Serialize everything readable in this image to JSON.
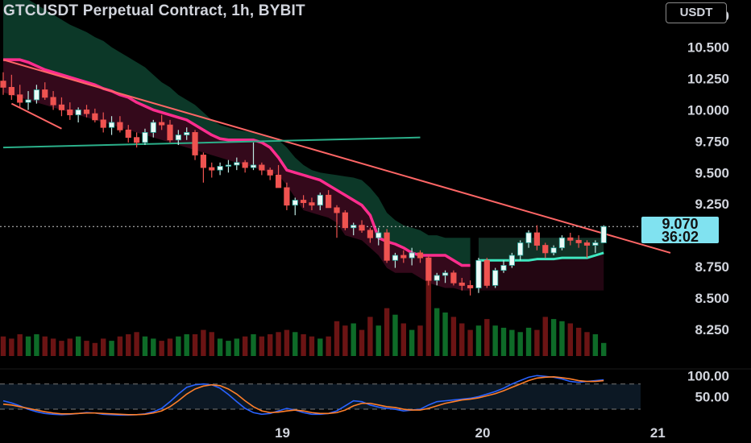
{
  "header": {
    "title": "GTCUSDT Perpetual Contract, 1h, BYBIT",
    "currency_label": "USDT"
  },
  "price_marker": {
    "price": "9.070",
    "countdown": "36:02"
  },
  "colors": {
    "up": "#26a69a",
    "down": "#ef5350",
    "cloud_upper": "#0d3b2a",
    "cloud_lower": "#3a0a1e",
    "stop_line": "#ff2d8e",
    "stop_line_up": "#3ee8c0",
    "trend_down": "#ff6666",
    "trend_green": "#2bb08a",
    "vol_up": "#0e6b28",
    "vol_down": "#6b1414",
    "k_line": "#2962ff",
    "d_line": "#ff7f2a",
    "price_box": "#80e2f0"
  },
  "chart_data": [
    {
      "type": "candlestick",
      "title": "GTCUSDT Perpetual Contract, 1h, BYBIT",
      "x_ticks": [
        {
          "label": "19",
          "bar": 33
        },
        {
          "label": "20",
          "bar": 57
        },
        {
          "label": "21",
          "bar": 78
        }
      ],
      "y_ticks": [
        "10.750",
        "10.500",
        "10.250",
        "10.000",
        "9.750",
        "9.500",
        "9.250",
        "8.750",
        "8.500",
        "8.250"
      ],
      "ylim": [
        8.05,
        10.78
      ],
      "last_price": 9.07,
      "candles_ohlc": [
        [
          10.23,
          10.3,
          10.12,
          10.18
        ],
        [
          10.18,
          10.28,
          10.08,
          10.12
        ],
        [
          10.12,
          10.2,
          10.02,
          10.06
        ],
        [
          10.06,
          10.15,
          10.0,
          10.08
        ],
        [
          10.08,
          10.2,
          10.05,
          10.16
        ],
        [
          10.16,
          10.22,
          10.08,
          10.1
        ],
        [
          10.1,
          10.15,
          10.0,
          10.04
        ],
        [
          10.04,
          10.1,
          9.95,
          10.0
        ],
        [
          10.0,
          10.06,
          9.92,
          9.96
        ],
        [
          9.96,
          10.02,
          9.9,
          10.0
        ],
        [
          10.0,
          10.04,
          9.94,
          9.97
        ],
        [
          9.97,
          10.01,
          9.9,
          9.92
        ],
        [
          9.92,
          9.98,
          9.82,
          9.86
        ],
        [
          9.86,
          9.95,
          9.8,
          9.9
        ],
        [
          9.9,
          9.95,
          9.82,
          9.84
        ],
        [
          9.84,
          9.88,
          9.74,
          9.78
        ],
        [
          9.78,
          9.82,
          9.7,
          9.74
        ],
        [
          9.74,
          9.85,
          9.72,
          9.82
        ],
        [
          9.82,
          9.92,
          9.78,
          9.9
        ],
        [
          9.9,
          9.96,
          9.84,
          9.88
        ],
        [
          9.88,
          9.92,
          9.74,
          9.76
        ],
        [
          9.76,
          9.84,
          9.72,
          9.8
        ],
        [
          9.8,
          9.86,
          9.76,
          9.82
        ],
        [
          9.82,
          9.84,
          9.6,
          9.64
        ],
        [
          9.64,
          9.66,
          9.42,
          9.54
        ],
        [
          9.54,
          9.58,
          9.46,
          9.52
        ],
        [
          9.52,
          9.58,
          9.48,
          9.55
        ],
        [
          9.55,
          9.6,
          9.5,
          9.56
        ],
        [
          9.56,
          9.62,
          9.52,
          9.58
        ],
        [
          9.58,
          9.6,
          9.5,
          9.54
        ],
        [
          9.54,
          9.74,
          9.52,
          9.56
        ],
        [
          9.56,
          9.58,
          9.48,
          9.52
        ],
        [
          9.52,
          9.54,
          9.44,
          9.48
        ],
        [
          9.48,
          9.56,
          9.4,
          9.38
        ],
        [
          9.38,
          9.42,
          9.2,
          9.24
        ],
        [
          9.24,
          9.3,
          9.16,
          9.28
        ],
        [
          9.28,
          9.32,
          9.22,
          9.26
        ],
        [
          9.26,
          9.3,
          9.2,
          9.24
        ],
        [
          9.24,
          9.34,
          9.2,
          9.32
        ],
        [
          9.32,
          9.36,
          9.22,
          9.22
        ],
        [
          9.22,
          9.24,
          8.98,
          9.18
        ],
        [
          9.18,
          9.2,
          9.04,
          9.06
        ],
        [
          9.06,
          9.1,
          9.0,
          9.08
        ],
        [
          9.08,
          9.12,
          9.02,
          9.04
        ],
        [
          9.04,
          9.06,
          8.94,
          8.98
        ],
        [
          8.98,
          9.06,
          8.92,
          9.02
        ],
        [
          9.02,
          9.05,
          8.78,
          8.8
        ],
        [
          8.8,
          8.86,
          8.74,
          8.84
        ],
        [
          8.84,
          8.88,
          8.78,
          8.82
        ],
        [
          8.82,
          8.9,
          8.76,
          8.86
        ],
        [
          8.86,
          8.88,
          8.78,
          8.82
        ],
        [
          8.82,
          8.84,
          8.6,
          8.64
        ],
        [
          8.64,
          8.7,
          8.6,
          8.68
        ],
        [
          8.68,
          8.72,
          8.62,
          8.7
        ],
        [
          8.7,
          8.72,
          8.6,
          8.62
        ],
        [
          8.62,
          8.66,
          8.56,
          8.6
        ],
        [
          8.6,
          8.64,
          8.52,
          8.58
        ],
        [
          8.58,
          8.82,
          8.54,
          8.8
        ],
        [
          8.8,
          8.82,
          8.58,
          8.6
        ],
        [
          8.6,
          8.74,
          8.58,
          8.72
        ],
        [
          8.72,
          8.8,
          8.7,
          8.76
        ],
        [
          8.76,
          8.86,
          8.74,
          8.84
        ],
        [
          8.84,
          8.96,
          8.8,
          8.94
        ],
        [
          8.94,
          9.04,
          8.9,
          9.02
        ],
        [
          9.02,
          9.08,
          8.88,
          8.92
        ],
        [
          8.92,
          8.94,
          8.82,
          8.86
        ],
        [
          8.86,
          8.92,
          8.84,
          8.9
        ],
        [
          8.9,
          9.0,
          8.88,
          8.98
        ],
        [
          8.98,
          9.02,
          8.92,
          8.96
        ],
        [
          8.96,
          9.0,
          8.9,
          8.94
        ],
        [
          8.94,
          8.96,
          8.82,
          8.92
        ],
        [
          8.92,
          8.96,
          8.86,
          8.94
        ],
        [
          8.94,
          9.08,
          8.94,
          9.07
        ]
      ],
      "volume": [
        9,
        8,
        10,
        9,
        10,
        9,
        8,
        7,
        8,
        9,
        7,
        6,
        8,
        7,
        9,
        10,
        11,
        9,
        8,
        7,
        8,
        9,
        10,
        10,
        12,
        11,
        8,
        7,
        8,
        9,
        10,
        9,
        10,
        11,
        12,
        11,
        10,
        9,
        8,
        9,
        16,
        14,
        15,
        12,
        18,
        14,
        22,
        19,
        15,
        12,
        14,
        40,
        22,
        20,
        18,
        15,
        12,
        14,
        17,
        14,
        13,
        12,
        11,
        13,
        12,
        18,
        17,
        16,
        15,
        13,
        11,
        10,
        6
      ],
      "cloud_upper": [
        10.98,
        10.96,
        10.92,
        10.88,
        10.84,
        10.8,
        10.76,
        10.72,
        10.68,
        10.65,
        10.62,
        10.58,
        10.55,
        10.5,
        10.46,
        10.42,
        10.38,
        10.34,
        10.28,
        10.22,
        10.18,
        10.12,
        10.08,
        10.04,
        9.98,
        9.92,
        9.88,
        9.86,
        9.84,
        9.83,
        9.82,
        9.8,
        9.78,
        9.76,
        9.7,
        9.62,
        9.56,
        9.52,
        9.5,
        9.49,
        9.48,
        9.47,
        9.46,
        9.44,
        9.38,
        9.3,
        9.18,
        9.12,
        9.08,
        9.06,
        9.04,
        9.0,
        9.0,
        8.98,
        8.98,
        8.98,
        8.98,
        8.98,
        8.98,
        8.98,
        8.98,
        8.98,
        8.98,
        8.98,
        8.98,
        8.98,
        8.98,
        8.98,
        8.98,
        8.98,
        8.98,
        8.98,
        8.98
      ],
      "cloud_lower": [
        10.14,
        10.12,
        10.1,
        10.08,
        10.06,
        10.04,
        10.02,
        10.0,
        9.98,
        9.96,
        9.94,
        9.92,
        9.9,
        9.88,
        9.86,
        9.84,
        9.82,
        9.8,
        9.78,
        9.76,
        9.74,
        9.72,
        9.7,
        9.68,
        9.66,
        9.64,
        9.62,
        9.6,
        9.58,
        9.56,
        9.54,
        9.52,
        9.5,
        9.48,
        9.4,
        9.3,
        9.2,
        9.18,
        9.16,
        9.14,
        9.1,
        9.0,
        8.98,
        8.96,
        8.9,
        8.84,
        8.74,
        8.7,
        8.7,
        8.7,
        8.66,
        8.62,
        8.6,
        8.58,
        8.58,
        8.56,
        8.56,
        8.56,
        8.56,
        8.56,
        8.56,
        8.56,
        8.56,
        8.56,
        8.56,
        8.56,
        8.56,
        8.56,
        8.56,
        8.56,
        8.56,
        8.56,
        8.56
      ],
      "stop_line": [
        10.4,
        10.4,
        10.4,
        10.38,
        10.35,
        10.32,
        10.3,
        10.28,
        10.26,
        10.24,
        10.22,
        10.2,
        10.17,
        10.15,
        10.12,
        10.1,
        10.06,
        10.03,
        10.0,
        9.98,
        9.96,
        9.94,
        9.92,
        9.88,
        9.84,
        9.8,
        9.77,
        9.76,
        9.76,
        9.76,
        9.76,
        9.74,
        9.7,
        9.62,
        9.52,
        9.5,
        9.48,
        9.46,
        9.44,
        9.4,
        9.36,
        9.32,
        9.28,
        9.24,
        9.16,
        8.98,
        8.95,
        8.93,
        8.9,
        8.86,
        8.84,
        8.84,
        8.84,
        8.84,
        8.8,
        8.76,
        8.76
      ],
      "stop_line_up_bars": [
        57,
        72
      ],
      "stop_line_up": [
        8.8,
        8.8,
        8.8,
        8.8,
        8.8,
        8.8,
        8.8,
        8.81,
        8.81,
        8.81,
        8.82,
        8.82,
        8.82,
        8.82,
        8.84,
        8.86
      ],
      "trend_lines": [
        {
          "name": "descending_resistance",
          "color": "#ff6666",
          "points": [
            [
              0,
              10.4
            ],
            [
              80,
              8.86
            ]
          ]
        },
        {
          "name": "lower_descending",
          "color": "#ff6666",
          "points": [
            [
              1,
              10.05
            ],
            [
              7,
              9.85
            ]
          ]
        },
        {
          "name": "rising_green",
          "color": "#2bb08a",
          "points": [
            [
              0,
              9.7
            ],
            [
              50,
              9.78
            ]
          ]
        }
      ]
    },
    {
      "type": "line",
      "title": "",
      "y_ticks": [
        "100.00",
        "50.00"
      ],
      "ylim": [
        -22,
        112
      ],
      "guide_levels": [
        80,
        20
      ],
      "series": [
        {
          "values": [
            40,
            35,
            28,
            20,
            14,
            10,
            8,
            7,
            8,
            10,
            12,
            11,
            8,
            7,
            6,
            6,
            7,
            9,
            14,
            22,
            38,
            56,
            72,
            78,
            80,
            78,
            70,
            55,
            38,
            22,
            12,
            8,
            10,
            16,
            22,
            18,
            12,
            8,
            8,
            10,
            16,
            28,
            40,
            38,
            30,
            25,
            22,
            20,
            16,
            18,
            20,
            30,
            38,
            40,
            42,
            44,
            46,
            50,
            56,
            62,
            70,
            80,
            88,
            96,
            100,
            98,
            96,
            92,
            86,
            84,
            86,
            88,
            90
          ]
        },
        {
          "values": [
            32,
            30,
            26,
            22,
            18,
            14,
            11,
            9,
            9,
            10,
            11,
            11,
            10,
            9,
            8,
            7,
            7,
            8,
            11,
            16,
            26,
            40,
            56,
            68,
            75,
            78,
            76,
            68,
            56,
            40,
            26,
            16,
            12,
            13,
            16,
            18,
            16,
            12,
            10,
            10,
            12,
            18,
            28,
            34,
            34,
            30,
            26,
            24,
            20,
            18,
            18,
            22,
            28,
            34,
            38,
            42,
            44,
            47,
            52,
            57,
            64,
            72,
            80,
            88,
            94,
            96,
            97,
            95,
            92,
            88,
            86,
            86,
            88
          ]
        }
      ]
    }
  ],
  "axis_labels": {
    "price": [
      "10.750",
      "10.500",
      "10.250",
      "10.000",
      "9.750",
      "9.500",
      "9.250",
      "8.750",
      "8.500",
      "8.250"
    ],
    "oscillator": [
      "100.00",
      "50.00"
    ],
    "time": [
      {
        "label": "19",
        "bar": 33
      },
      {
        "label": "20",
        "bar": 57
      },
      {
        "label": "21",
        "bar": 78
      }
    ]
  }
}
